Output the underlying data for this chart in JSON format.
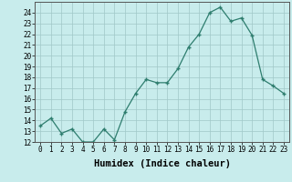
{
  "x": [
    0,
    1,
    2,
    3,
    4,
    5,
    6,
    7,
    8,
    9,
    10,
    11,
    12,
    13,
    14,
    15,
    16,
    17,
    18,
    19,
    20,
    21,
    22,
    23
  ],
  "y": [
    13.5,
    14.2,
    12.8,
    13.2,
    12.0,
    12.0,
    13.2,
    12.2,
    14.8,
    16.5,
    17.8,
    17.5,
    17.5,
    18.8,
    20.8,
    22.0,
    24.0,
    24.5,
    23.2,
    23.5,
    21.9,
    17.8,
    17.2,
    16.5
  ],
  "xlabel": "Humidex (Indice chaleur)",
  "bg_color": "#c8ecec",
  "line_color": "#2e7d6e",
  "marker": "+",
  "ylim": [
    12,
    25
  ],
  "xlim": [
    -0.5,
    23.5
  ],
  "yticks": [
    12,
    13,
    14,
    15,
    16,
    17,
    18,
    19,
    20,
    21,
    22,
    23,
    24
  ],
  "xticks": [
    0,
    1,
    2,
    3,
    4,
    5,
    6,
    7,
    8,
    9,
    10,
    11,
    12,
    13,
    14,
    15,
    16,
    17,
    18,
    19,
    20,
    21,
    22,
    23
  ],
  "grid_color": "#a0c8c8",
  "tick_fontsize": 5.5,
  "xlabel_fontsize": 7.5
}
